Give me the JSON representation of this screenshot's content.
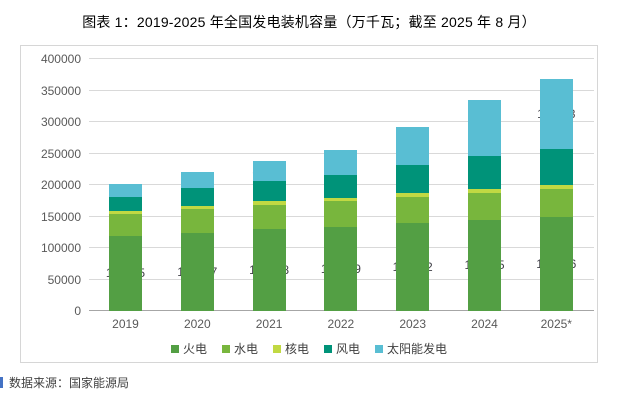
{
  "title": "图表 1：2019-2025 年全国发电装机容量（万千瓦；截至 2025 年 8 月）",
  "footer": {
    "source_label": "数据来源：国家能源局",
    "accent_color": "#4472c4"
  },
  "chart_data": {
    "type": "bar",
    "stacked": true,
    "title": "图表 1：2019-2025 年全国发电装机容量（万千瓦；截至 2025 年 8 月）",
    "unit": "万千瓦",
    "categories": [
      "2019",
      "2020",
      "2021",
      "2022",
      "2023",
      "2024",
      "2025*"
    ],
    "series": [
      {
        "key": "thermal",
        "name": "火电",
        "color": "#539f44",
        "labeled": true,
        "values": [
          119055,
          124517,
          129678,
          133239,
          139042,
          144445,
          149436
        ]
      },
      {
        "key": "hydro",
        "name": "水电",
        "color": "#78b63d",
        "labeled": false,
        "values": [
          35640,
          37016,
          39092,
          41350,
          42154,
          43595,
          44100
        ]
      },
      {
        "key": "nuclear",
        "name": "核电",
        "color": "#c1d943",
        "labeled": false,
        "values": [
          4874,
          4989,
          5326,
          5553,
          5691,
          6083,
          6250
        ]
      },
      {
        "key": "wind",
        "name": "风电",
        "color": "#009379",
        "labeled": false,
        "values": [
          21005,
          28153,
          32848,
          36544,
          44134,
          52068,
          57200
        ]
      },
      {
        "key": "solar",
        "name": "太阳能发电",
        "color": "#59bed3",
        "labeled": true,
        "values": [
          20468,
          25343,
          30656,
          39261,
          60949,
          88666,
          111723
        ]
      }
    ],
    "ylim": [
      0,
      400000
    ],
    "yticks": [
      0,
      50000,
      100000,
      150000,
      200000,
      250000,
      300000,
      350000,
      400000
    ],
    "grid": true,
    "legend_position": "bottom",
    "xlabel": "",
    "ylabel": ""
  }
}
